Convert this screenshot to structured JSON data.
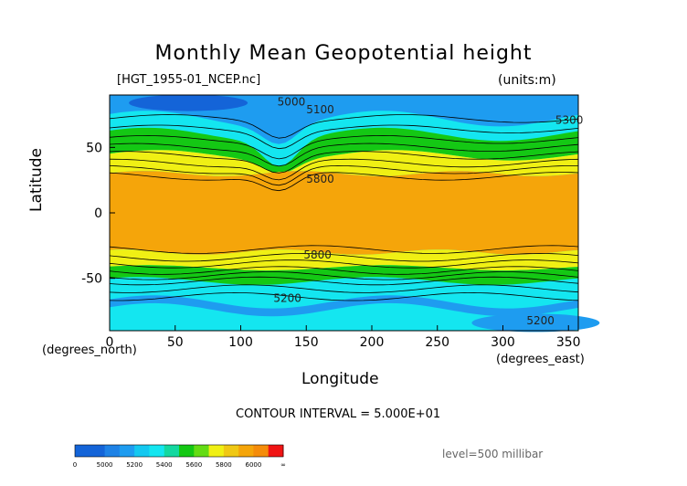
{
  "page": {
    "title": "Monthly Mean Geopotential height",
    "file_label": "[HGT_1955-01_NCEP.nc]",
    "units_label": "(units:m)",
    "x_unit_label": "(degrees_north)",
    "x_unit_label2": "(degrees_east)",
    "contour_interval": "CONTOUR INTERVAL = 5.000E+01",
    "level": "level=500 millibar"
  },
  "chart_data": {
    "type": "heatmap",
    "title": "Monthly Mean Geopotential height",
    "xlabel": "Longitude",
    "ylabel": "Latitude",
    "xlim": [
      0,
      357.5
    ],
    "ylim": [
      -90,
      90
    ],
    "x_ticks": [
      0,
      50,
      100,
      150,
      200,
      250,
      300,
      350
    ],
    "y_ticks": [
      50,
      0,
      -50
    ],
    "contour_interval": 50,
    "colors": {
      "below_5000": "#1464d8",
      "5000_5200": "#1e9cf0",
      "5200_5400": "#14e6f0",
      "5400_5600": "#14c814",
      "5600_5800": "#f0f014",
      "5800_6000": "#f5a50a",
      "above_6000": "#f01414"
    },
    "colorbar": {
      "labels": [
        "0",
        "5000",
        "5200",
        "5400",
        "5600",
        "5800",
        "6000",
        "∞"
      ],
      "colors": [
        "#1464d8",
        "#1464d8",
        "#1e82e6",
        "#1e9cf0",
        "#14c8f0",
        "#14e6f0",
        "#14d8a0",
        "#14c814",
        "#64dc14",
        "#f0f014",
        "#f0c814",
        "#f5a50a",
        "#f58c0a",
        "#f01414"
      ]
    },
    "contour_labels": [
      {
        "text": "5000",
        "x": 128,
        "y": 82
      },
      {
        "text": "5100",
        "x": 150,
        "y": 76
      },
      {
        "text": "5300",
        "x": 340,
        "y": 68
      },
      {
        "text": "5800",
        "x": 150,
        "y": 23
      },
      {
        "text": "5800",
        "x": 148,
        "y": -35
      },
      {
        "text": "5200",
        "x": 125,
        "y": -68
      },
      {
        "text": "5200",
        "x": 318,
        "y": -85
      }
    ]
  }
}
